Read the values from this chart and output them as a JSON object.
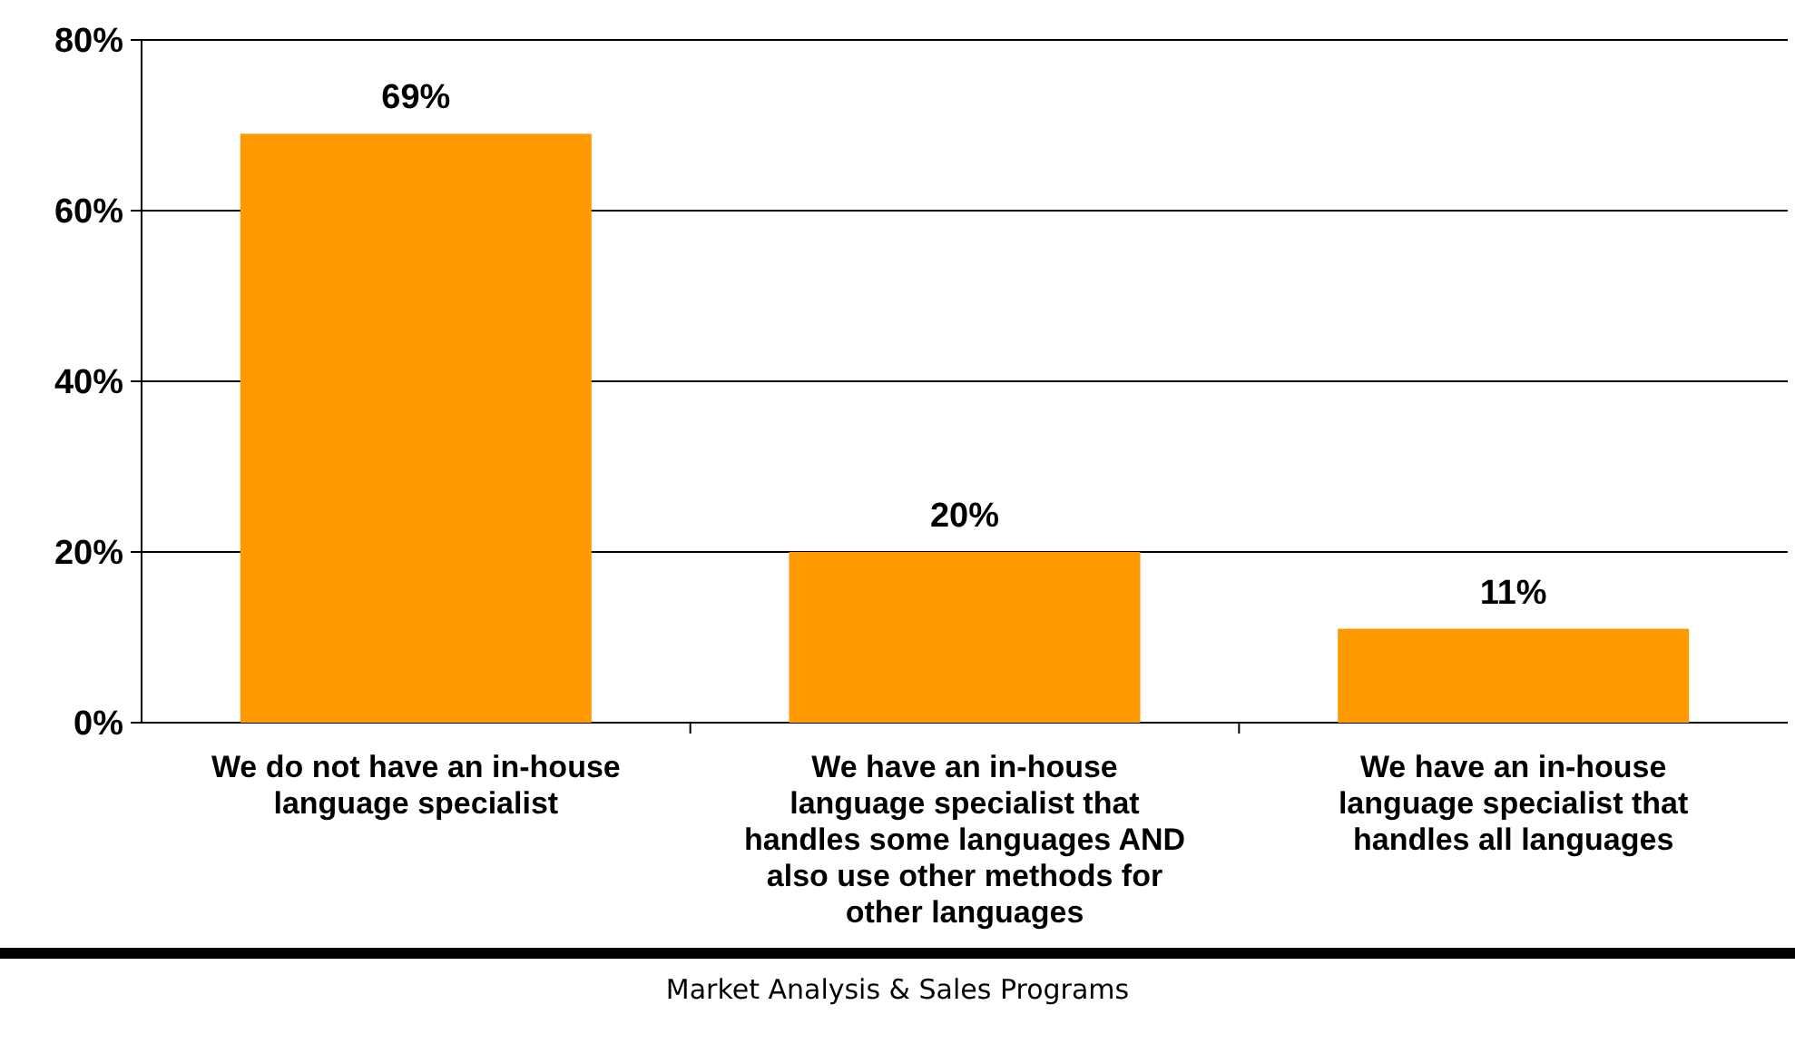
{
  "chart_data": {
    "type": "bar",
    "categories": [
      "We do not have an in-house language specialist",
      "We have an in-house language specialist that handles some languages AND also use other methods for other languages",
      "We have an in-house language specialist that handles all languages"
    ],
    "values": [
      69,
      20,
      11
    ],
    "color": "#ff9900",
    "ylim": [
      0,
      80
    ],
    "yticks": [
      {
        "value": 0,
        "label": "0%"
      },
      {
        "value": 20,
        "label": "20%"
      },
      {
        "value": 40,
        "label": "40%"
      },
      {
        "value": 60,
        "label": "60%"
      },
      {
        "value": 80,
        "label": "80%"
      }
    ],
    "grid": "y",
    "value_labels": [
      "69%",
      "20%",
      "11%"
    ],
    "annotations": [
      "Market Analysis & Sales Programs"
    ]
  }
}
